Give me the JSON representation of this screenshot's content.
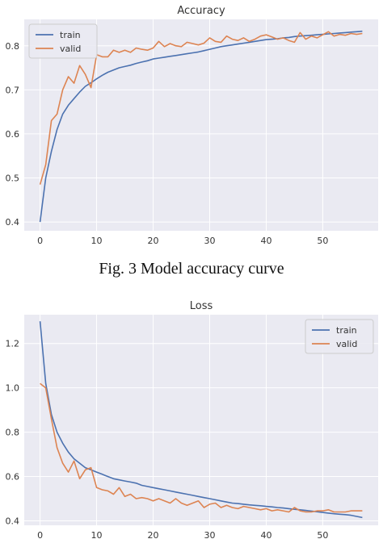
{
  "caption": "Fig. 3 Model accuracy curve",
  "colors": {
    "train": "#4c72b0",
    "valid": "#dd8452",
    "plot_bg": "#eaeaf2",
    "grid": "#ffffff",
    "text": "#333333"
  },
  "chart_data": [
    {
      "type": "line",
      "title": "Accuracy",
      "xlabel": "",
      "ylabel": "",
      "xlim": [
        -2.8,
        59.8
      ],
      "ylim": [
        0.38,
        0.86
      ],
      "xticks": [
        0,
        10,
        20,
        30,
        40,
        50
      ],
      "xtick_labels": [
        "0",
        "10",
        "20",
        "30",
        "40",
        "50"
      ],
      "yticks": [
        0.4,
        0.5,
        0.6,
        0.7,
        0.8
      ],
      "ytick_labels": [
        "0.4",
        "0.5",
        "0.6",
        "0.7",
        "0.8"
      ],
      "grid": true,
      "legend_position": "top-left",
      "series": [
        {
          "name": "train",
          "color": "#4c72b0",
          "x": [
            0,
            1,
            2,
            3,
            4,
            5,
            6,
            7,
            8,
            9,
            10,
            11,
            12,
            13,
            14,
            15,
            16,
            17,
            18,
            19,
            20,
            21,
            22,
            23,
            24,
            25,
            26,
            27,
            28,
            29,
            30,
            31,
            32,
            33,
            34,
            35,
            36,
            37,
            38,
            39,
            40,
            41,
            42,
            43,
            44,
            45,
            46,
            47,
            48,
            49,
            50,
            51,
            52,
            53,
            54,
            55,
            56,
            57
          ],
          "values": [
            0.4,
            0.5,
            0.56,
            0.61,
            0.645,
            0.665,
            0.68,
            0.695,
            0.708,
            0.716,
            0.725,
            0.733,
            0.74,
            0.745,
            0.75,
            0.753,
            0.756,
            0.76,
            0.763,
            0.766,
            0.77,
            0.772,
            0.774,
            0.776,
            0.778,
            0.78,
            0.782,
            0.784,
            0.786,
            0.789,
            0.792,
            0.795,
            0.798,
            0.8,
            0.802,
            0.804,
            0.806,
            0.808,
            0.81,
            0.812,
            0.814,
            0.815,
            0.816,
            0.818,
            0.819,
            0.821,
            0.822,
            0.823,
            0.824,
            0.825,
            0.826,
            0.827,
            0.828,
            0.829,
            0.83,
            0.831,
            0.832,
            0.833
          ]
        },
        {
          "name": "valid",
          "color": "#dd8452",
          "x": [
            0,
            1,
            2,
            3,
            4,
            5,
            6,
            7,
            8,
            9,
            10,
            11,
            12,
            13,
            14,
            15,
            16,
            17,
            18,
            19,
            20,
            21,
            22,
            23,
            24,
            25,
            26,
            27,
            28,
            29,
            30,
            31,
            32,
            33,
            34,
            35,
            36,
            37,
            38,
            39,
            40,
            41,
            42,
            43,
            44,
            45,
            46,
            47,
            48,
            49,
            50,
            51,
            52,
            53,
            54,
            55,
            56,
            57
          ],
          "values": [
            0.485,
            0.53,
            0.63,
            0.645,
            0.7,
            0.73,
            0.715,
            0.755,
            0.735,
            0.705,
            0.78,
            0.775,
            0.775,
            0.79,
            0.785,
            0.79,
            0.785,
            0.795,
            0.792,
            0.79,
            0.795,
            0.81,
            0.798,
            0.805,
            0.8,
            0.798,
            0.808,
            0.805,
            0.802,
            0.806,
            0.818,
            0.81,
            0.808,
            0.822,
            0.815,
            0.812,
            0.818,
            0.81,
            0.815,
            0.822,
            0.825,
            0.82,
            0.815,
            0.818,
            0.812,
            0.808,
            0.83,
            0.815,
            0.822,
            0.818,
            0.825,
            0.832,
            0.822,
            0.826,
            0.824,
            0.828,
            0.826,
            0.828
          ]
        }
      ]
    },
    {
      "type": "line",
      "title": "Loss",
      "xlabel": "",
      "ylabel": "",
      "xlim": [
        -2.8,
        59.8
      ],
      "ylim": [
        0.38,
        1.33
      ],
      "xticks": [
        0,
        10,
        20,
        30,
        40,
        50
      ],
      "xtick_labels": [
        "0",
        "10",
        "20",
        "30",
        "40",
        "50"
      ],
      "yticks": [
        0.4,
        0.6,
        0.8,
        1.0,
        1.2
      ],
      "ytick_labels": [
        "0.4",
        "0.6",
        "0.8",
        "1.0",
        "1.2"
      ],
      "grid": true,
      "legend_position": "top-right",
      "series": [
        {
          "name": "train",
          "color": "#4c72b0",
          "x": [
            0,
            1,
            2,
            3,
            4,
            5,
            6,
            7,
            8,
            9,
            10,
            11,
            12,
            13,
            14,
            15,
            16,
            17,
            18,
            19,
            20,
            21,
            22,
            23,
            24,
            25,
            26,
            27,
            28,
            29,
            30,
            31,
            32,
            33,
            34,
            35,
            36,
            37,
            38,
            39,
            40,
            41,
            42,
            43,
            44,
            45,
            46,
            47,
            48,
            49,
            50,
            51,
            52,
            53,
            54,
            55,
            56,
            57
          ],
          "values": [
            1.3,
            1.02,
            0.88,
            0.8,
            0.75,
            0.71,
            0.68,
            0.66,
            0.64,
            0.63,
            0.62,
            0.61,
            0.6,
            0.59,
            0.585,
            0.58,
            0.575,
            0.57,
            0.56,
            0.555,
            0.55,
            0.545,
            0.54,
            0.535,
            0.53,
            0.525,
            0.52,
            0.515,
            0.51,
            0.505,
            0.5,
            0.495,
            0.49,
            0.485,
            0.48,
            0.478,
            0.475,
            0.472,
            0.47,
            0.468,
            0.465,
            0.463,
            0.46,
            0.458,
            0.455,
            0.452,
            0.45,
            0.447,
            0.444,
            0.441,
            0.438,
            0.435,
            0.432,
            0.43,
            0.428,
            0.425,
            0.42,
            0.415
          ]
        },
        {
          "name": "valid",
          "color": "#dd8452",
          "x": [
            0,
            1,
            2,
            3,
            4,
            5,
            6,
            7,
            8,
            9,
            10,
            11,
            12,
            13,
            14,
            15,
            16,
            17,
            18,
            19,
            20,
            21,
            22,
            23,
            24,
            25,
            26,
            27,
            28,
            29,
            30,
            31,
            32,
            33,
            34,
            35,
            36,
            37,
            38,
            39,
            40,
            41,
            42,
            43,
            44,
            45,
            46,
            47,
            48,
            49,
            50,
            51,
            52,
            53,
            54,
            55,
            56,
            57
          ],
          "values": [
            1.02,
            1.0,
            0.86,
            0.73,
            0.66,
            0.62,
            0.67,
            0.59,
            0.63,
            0.64,
            0.55,
            0.54,
            0.535,
            0.52,
            0.55,
            0.51,
            0.52,
            0.5,
            0.505,
            0.5,
            0.49,
            0.5,
            0.49,
            0.48,
            0.5,
            0.48,
            0.47,
            0.48,
            0.49,
            0.46,
            0.475,
            0.48,
            0.46,
            0.47,
            0.46,
            0.455,
            0.465,
            0.46,
            0.455,
            0.45,
            0.455,
            0.445,
            0.45,
            0.445,
            0.44,
            0.46,
            0.445,
            0.44,
            0.44,
            0.445,
            0.445,
            0.45,
            0.44,
            0.44,
            0.44,
            0.445,
            0.445,
            0.445
          ]
        }
      ]
    }
  ]
}
